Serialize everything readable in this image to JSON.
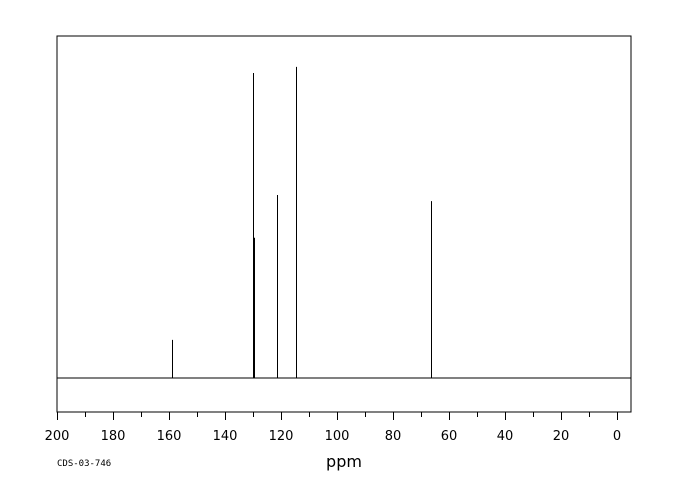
{
  "chart_data": {
    "type": "line",
    "title": "",
    "xlabel": "ppm",
    "ylabel": "",
    "xlim": [
      200,
      -5
    ],
    "x_reversed": true,
    "ylim": [
      0,
      1.0
    ],
    "grid": false,
    "legend": "none",
    "x_ticks": [
      200,
      180,
      160,
      140,
      120,
      100,
      80,
      60,
      40,
      20,
      0
    ],
    "peaks": [
      {
        "ppm": 158.8,
        "intensity": 0.125
      },
      {
        "ppm": 129.9,
        "intensity": 1.0
      },
      {
        "ppm": 129.5,
        "intensity": 0.46
      },
      {
        "ppm": 121.4,
        "intensity": 0.6
      },
      {
        "ppm": 114.8,
        "intensity": 1.02
      },
      {
        "ppm": 114.5,
        "intensity": 0.135
      },
      {
        "ppm": 66.6,
        "intensity": 0.58
      }
    ]
  },
  "sample_code": "CDS-03-746"
}
